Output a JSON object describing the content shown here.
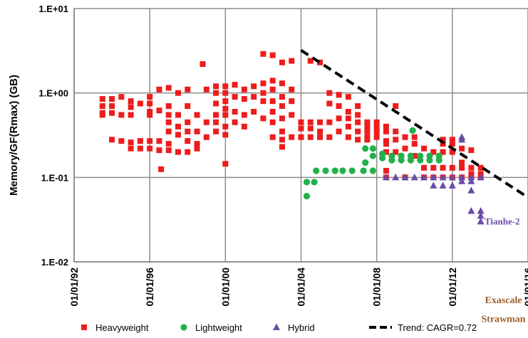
{
  "chart_data": {
    "type": "scatter",
    "title": "",
    "xlabel": "",
    "ylabel": "Memory/GF(Rmax) (GB)",
    "y_scale": "log",
    "ylim": [
      0.01,
      10
    ],
    "xlim": [
      1992,
      2016
    ],
    "grid": true,
    "legend_position": "bottom",
    "y_ticks": [
      "1.E+01",
      "1.E+00",
      "1.E-01",
      "1.E-02"
    ],
    "x_ticks": [
      {
        "value": 1992,
        "label": "01/01/92"
      },
      {
        "value": 1996,
        "label": "01/01/96"
      },
      {
        "value": 2000,
        "label": "01/01/00"
      },
      {
        "value": 2004,
        "label": "01/01/04"
      },
      {
        "value": 2008,
        "label": "01/01/08"
      },
      {
        "value": 2012,
        "label": "01/01/12"
      },
      {
        "value": 2016,
        "label": "01/01/16"
      }
    ],
    "series": [
      {
        "name": "Heavyweight",
        "marker": "square",
        "color": "#ee1c1c",
        "points": [
          [
            1993.5,
            0.85
          ],
          [
            1993.5,
            0.7
          ],
          [
            1993.5,
            0.58
          ],
          [
            1993.5,
            0.55
          ],
          [
            1994.0,
            0.85
          ],
          [
            1994.0,
            0.7
          ],
          [
            1994.0,
            0.58
          ],
          [
            1994.0,
            0.28
          ],
          [
            1994.5,
            0.9
          ],
          [
            1994.5,
            0.55
          ],
          [
            1994.5,
            0.27
          ],
          [
            1995.0,
            0.8
          ],
          [
            1995.0,
            0.68
          ],
          [
            1995.0,
            0.55
          ],
          [
            1995.0,
            0.26
          ],
          [
            1995.0,
            0.22
          ],
          [
            1995.5,
            0.75
          ],
          [
            1995.5,
            0.27
          ],
          [
            1995.5,
            0.22
          ],
          [
            1996.0,
            0.9
          ],
          [
            1996.0,
            0.75
          ],
          [
            1996.0,
            0.6
          ],
          [
            1996.0,
            0.55
          ],
          [
            1996.0,
            0.27
          ],
          [
            1996.0,
            0.22
          ],
          [
            1996.5,
            1.1
          ],
          [
            1996.5,
            0.62
          ],
          [
            1996.5,
            0.27
          ],
          [
            1996.5,
            0.21
          ],
          [
            1996.6,
            0.125
          ],
          [
            1997.0,
            1.15
          ],
          [
            1997.0,
            0.7
          ],
          [
            1997.0,
            0.55
          ],
          [
            1997.0,
            0.45
          ],
          [
            1997.0,
            0.35
          ],
          [
            1997.0,
            0.25
          ],
          [
            1997.0,
            0.21
          ],
          [
            1997.5,
            1.0
          ],
          [
            1997.5,
            0.55
          ],
          [
            1997.5,
            0.4
          ],
          [
            1997.5,
            0.32
          ],
          [
            1997.5,
            0.2
          ],
          [
            1998.0,
            1.1
          ],
          [
            1998.0,
            0.7
          ],
          [
            1998.0,
            0.45
          ],
          [
            1998.0,
            0.35
          ],
          [
            1998.0,
            0.27
          ],
          [
            1998.0,
            0.2
          ],
          [
            1998.5,
            0.55
          ],
          [
            1998.5,
            0.35
          ],
          [
            1998.5,
            0.25
          ],
          [
            1998.5,
            0.22
          ],
          [
            1998.8,
            2.2
          ],
          [
            1999.0,
            1.1
          ],
          [
            1999.0,
            0.45
          ],
          [
            1999.0,
            0.3
          ],
          [
            1999.5,
            1.2
          ],
          [
            1999.5,
            1.0
          ],
          [
            1999.5,
            0.75
          ],
          [
            1999.5,
            0.55
          ],
          [
            1999.5,
            0.45
          ],
          [
            1999.5,
            0.35
          ],
          [
            2000.0,
            1.2
          ],
          [
            2000.0,
            1.0
          ],
          [
            2000.0,
            0.8
          ],
          [
            2000.0,
            0.65
          ],
          [
            2000.0,
            0.55
          ],
          [
            2000.0,
            0.4
          ],
          [
            2000.0,
            0.32
          ],
          [
            2000.0,
            0.145
          ],
          [
            2000.5,
            1.25
          ],
          [
            2000.5,
            0.9
          ],
          [
            2000.5,
            0.6
          ],
          [
            2000.5,
            0.45
          ],
          [
            2001.0,
            1.1
          ],
          [
            2001.0,
            0.85
          ],
          [
            2001.0,
            0.55
          ],
          [
            2001.0,
            0.4
          ],
          [
            2001.5,
            1.2
          ],
          [
            2001.5,
            0.9
          ],
          [
            2001.5,
            0.6
          ],
          [
            2002.0,
            1.3
          ],
          [
            2002.0,
            1.0
          ],
          [
            2002.0,
            0.8
          ],
          [
            2002.0,
            0.5
          ],
          [
            2002.0,
            2.9
          ],
          [
            2002.5,
            1.4
          ],
          [
            2002.5,
            1.1
          ],
          [
            2002.5,
            0.8
          ],
          [
            2002.5,
            0.6
          ],
          [
            2002.5,
            0.45
          ],
          [
            2002.5,
            0.3
          ],
          [
            2002.5,
            2.8
          ],
          [
            2003.0,
            1.3
          ],
          [
            2003.0,
            0.9
          ],
          [
            2003.0,
            0.7
          ],
          [
            2003.0,
            0.5
          ],
          [
            2003.0,
            0.35
          ],
          [
            2003.0,
            0.28
          ],
          [
            2003.0,
            0.23
          ],
          [
            2003.0,
            2.3
          ],
          [
            2003.5,
            1.1
          ],
          [
            2003.5,
            0.8
          ],
          [
            2003.5,
            0.55
          ],
          [
            2003.5,
            0.3
          ],
          [
            2003.5,
            2.4
          ],
          [
            2004.0,
            0.45
          ],
          [
            2004.0,
            0.38
          ],
          [
            2004.0,
            0.3
          ],
          [
            2004.5,
            2.4
          ],
          [
            2004.5,
            0.45
          ],
          [
            2004.5,
            0.38
          ],
          [
            2004.5,
            0.3
          ],
          [
            2005.0,
            2.3
          ],
          [
            2005.0,
            0.45
          ],
          [
            2005.0,
            0.35
          ],
          [
            2005.0,
            0.3
          ],
          [
            2005.5,
            1.0
          ],
          [
            2005.5,
            0.75
          ],
          [
            2005.5,
            0.45
          ],
          [
            2005.5,
            0.3
          ],
          [
            2006.0,
            0.95
          ],
          [
            2006.0,
            0.7
          ],
          [
            2006.0,
            0.5
          ],
          [
            2006.0,
            0.35
          ],
          [
            2006.5,
            0.9
          ],
          [
            2006.5,
            0.6
          ],
          [
            2006.5,
            0.5
          ],
          [
            2006.5,
            0.4
          ],
          [
            2006.5,
            0.3
          ],
          [
            2007.0,
            0.7
          ],
          [
            2007.0,
            0.55
          ],
          [
            2007.0,
            0.45
          ],
          [
            2007.0,
            0.35
          ],
          [
            2007.0,
            0.28
          ],
          [
            2007.5,
            0.45
          ],
          [
            2007.5,
            0.4
          ],
          [
            2007.5,
            0.35
          ],
          [
            2007.5,
            0.3
          ],
          [
            2007.5,
            0.28
          ],
          [
            2008.0,
            0.45
          ],
          [
            2008.0,
            0.4
          ],
          [
            2008.0,
            0.35
          ],
          [
            2008.0,
            0.3
          ],
          [
            2008.5,
            0.4
          ],
          [
            2008.5,
            0.35
          ],
          [
            2008.5,
            0.27
          ],
          [
            2008.5,
            0.25
          ],
          [
            2008.5,
            0.2
          ],
          [
            2008.5,
            0.12
          ],
          [
            2008.5,
            0.1
          ],
          [
            2009.0,
            0.7
          ],
          [
            2009.0,
            0.35
          ],
          [
            2009.0,
            0.28
          ],
          [
            2009.0,
            0.2
          ],
          [
            2009.5,
            0.3
          ],
          [
            2009.5,
            0.22
          ],
          [
            2009.5,
            0.1
          ],
          [
            2010.0,
            0.3
          ],
          [
            2010.0,
            0.25
          ],
          [
            2010.0,
            0.18
          ],
          [
            2010.5,
            0.22
          ],
          [
            2010.5,
            0.13
          ],
          [
            2010.5,
            0.1
          ],
          [
            2011.0,
            0.2
          ],
          [
            2011.0,
            0.13
          ],
          [
            2011.0,
            0.1
          ],
          [
            2011.5,
            0.28
          ],
          [
            2011.5,
            0.25
          ],
          [
            2011.5,
            0.2
          ],
          [
            2011.5,
            0.13
          ],
          [
            2011.5,
            0.1
          ],
          [
            2012.0,
            0.28
          ],
          [
            2012.0,
            0.25
          ],
          [
            2012.0,
            0.2
          ],
          [
            2012.0,
            0.13
          ],
          [
            2012.0,
            0.1
          ],
          [
            2012.5,
            0.22
          ],
          [
            2012.5,
            0.15
          ],
          [
            2012.5,
            0.13
          ],
          [
            2012.5,
            0.1
          ],
          [
            2013.0,
            0.21
          ],
          [
            2013.0,
            0.13
          ],
          [
            2013.0,
            0.11
          ],
          [
            2013.0,
            0.1
          ],
          [
            2013.5,
            0.13
          ],
          [
            2013.5,
            0.11
          ],
          [
            2013.5,
            0.1
          ]
        ]
      },
      {
        "name": "Lightweight",
        "marker": "circle",
        "color": "#22b04b",
        "points": [
          [
            2004.3,
            0.088
          ],
          [
            2004.3,
            0.06
          ],
          [
            2004.7,
            0.088
          ],
          [
            2004.8,
            0.12
          ],
          [
            2005.3,
            0.12
          ],
          [
            2005.8,
            0.12
          ],
          [
            2006.2,
            0.12
          ],
          [
            2006.7,
            0.12
          ],
          [
            2007.3,
            0.12
          ],
          [
            2007.8,
            0.12
          ],
          [
            2007.4,
            0.22
          ],
          [
            2007.4,
            0.15
          ],
          [
            2007.8,
            0.22
          ],
          [
            2007.8,
            0.18
          ],
          [
            2008.3,
            0.19
          ],
          [
            2008.3,
            0.17
          ],
          [
            2008.8,
            0.18
          ],
          [
            2008.8,
            0.16
          ],
          [
            2009.3,
            0.18
          ],
          [
            2009.3,
            0.16
          ],
          [
            2009.8,
            0.18
          ],
          [
            2009.8,
            0.16
          ],
          [
            2009.9,
            0.36
          ],
          [
            2010.3,
            0.18
          ],
          [
            2010.3,
            0.16
          ],
          [
            2010.8,
            0.18
          ],
          [
            2010.8,
            0.16
          ],
          [
            2011.3,
            0.18
          ],
          [
            2011.3,
            0.16
          ]
        ]
      },
      {
        "name": "Hybrid",
        "marker": "triangle",
        "color": "#6a4ba6",
        "points": [
          [
            2008.5,
            0.1
          ],
          [
            2009.0,
            0.1
          ],
          [
            2009.5,
            0.1
          ],
          [
            2010.0,
            0.1
          ],
          [
            2010.5,
            0.1
          ],
          [
            2011.0,
            0.1
          ],
          [
            2011.0,
            0.08
          ],
          [
            2011.5,
            0.1
          ],
          [
            2011.5,
            0.08
          ],
          [
            2012.0,
            0.1
          ],
          [
            2012.0,
            0.08
          ],
          [
            2012.5,
            0.3
          ],
          [
            2012.5,
            0.28
          ],
          [
            2012.5,
            0.1
          ],
          [
            2012.5,
            0.09
          ],
          [
            2013.0,
            0.1
          ],
          [
            2013.0,
            0.09
          ],
          [
            2013.0,
            0.07
          ],
          [
            2013.0,
            0.04
          ],
          [
            2013.5,
            0.1
          ],
          [
            2013.5,
            0.04
          ],
          [
            2013.5,
            0.035
          ],
          [
            2013.5,
            0.03
          ]
        ]
      }
    ],
    "trend": {
      "name": "Trend: CAGR=0.72",
      "color": "#000000",
      "style": "dashed",
      "points": [
        [
          2004.0,
          3.2
        ],
        [
          2016.0,
          0.058
        ]
      ]
    },
    "annotations": [
      {
        "text": "Tianhe-2",
        "x": 2013.7,
        "y": 0.03
      },
      {
        "text": "Exascale",
        "x": 2014.7,
        "y": 0.0035
      },
      {
        "text": "Strawman",
        "x": 2014.7,
        "y": 0.0021
      }
    ]
  }
}
